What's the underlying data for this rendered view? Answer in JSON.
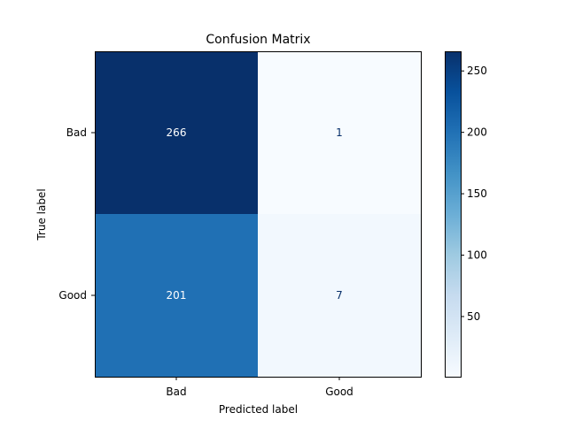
{
  "chart_data": {
    "type": "heatmap",
    "title": "Confusion Matrix",
    "xlabel": "Predicted label",
    "ylabel": "True label",
    "x_categories": [
      "Bad",
      "Good"
    ],
    "y_categories": [
      "Bad",
      "Good"
    ],
    "values": [
      [
        266,
        1
      ],
      [
        201,
        7
      ]
    ],
    "colormap": "Blues",
    "colorbar": {
      "min": 1,
      "max": 266,
      "ticks": [
        50,
        100,
        150,
        200,
        250
      ],
      "tick_labels": [
        "50",
        "100",
        "150",
        "200",
        "250"
      ]
    },
    "grid": false,
    "colors": {
      "cell_text_dark": "#ffffff",
      "cell_text_light": "#08306b"
    }
  }
}
